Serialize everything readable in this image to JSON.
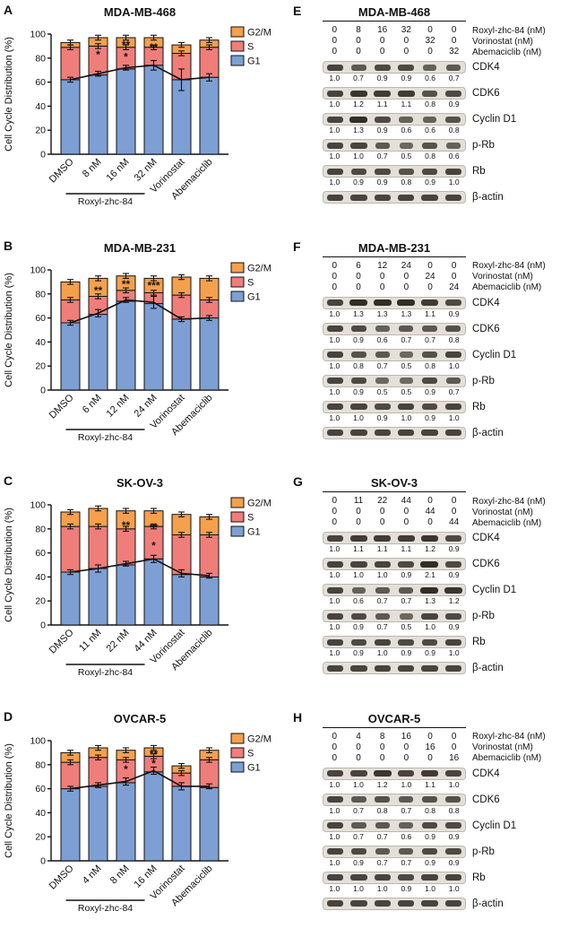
{
  "colors": {
    "g2m": "#F5A04C",
    "s": "#EF7E7A",
    "g1": "#7D9FD3",
    "outline": "#111111"
  },
  "legend": [
    "G2/M",
    "S",
    "G1"
  ],
  "chart_data": [
    {
      "panel": "A",
      "type": "bar",
      "stacked": true,
      "title": "MDA-MB-468",
      "ylabel": "Cell Cycle Distribution (%)",
      "ylim": [
        0,
        100
      ],
      "yticks": [
        0,
        20,
        40,
        60,
        80,
        100
      ],
      "categories": [
        "DMSO",
        "8 nM",
        "16 nM",
        "32 nM",
        "Vorinostat",
        "Abemaciclib"
      ],
      "dose_group": {
        "label": "Roxyl-zhc-84",
        "from": 1,
        "to": 3
      },
      "series": [
        {
          "name": "G1",
          "values": [
            62,
            66,
            71,
            74,
            62,
            64
          ]
        },
        {
          "name": "S",
          "values": [
            27,
            24,
            18,
            15,
            22,
            25
          ]
        },
        {
          "name": "G2/M",
          "values": [
            4,
            7,
            8,
            8,
            7,
            6
          ]
        }
      ],
      "line_overlay": {
        "label": "G1 trend",
        "values": [
          62,
          67,
          72,
          74,
          62,
          64
        ],
        "err": [
          2,
          2,
          2,
          4,
          9,
          3
        ]
      },
      "significance": [
        {
          "index": 1,
          "text": "*",
          "y": 80
        },
        {
          "index": 2,
          "text": "**",
          "y": 88
        },
        {
          "index": 2,
          "text": "*",
          "y": 78
        },
        {
          "index": 3,
          "text": "**",
          "y": 86
        }
      ]
    },
    {
      "panel": "B",
      "type": "bar",
      "stacked": true,
      "title": "MDA-MB-231",
      "ylabel": "Cell Cycle Distribution (%)",
      "ylim": [
        0,
        100
      ],
      "yticks": [
        0,
        20,
        40,
        60,
        80,
        100
      ],
      "categories": [
        "DMSO",
        "6 nM",
        "12 nM",
        "24 nM",
        "Vorinostat",
        "Abemaciclib"
      ],
      "dose_group": {
        "label": "Roxyl-zhc-84",
        "from": 1,
        "to": 3
      },
      "series": [
        {
          "name": "G1",
          "values": [
            56,
            63,
            74,
            72,
            59,
            60
          ]
        },
        {
          "name": "S",
          "values": [
            19,
            15,
            9,
            9,
            20,
            15
          ]
        },
        {
          "name": "G2/M",
          "values": [
            15,
            15,
            12,
            12,
            15,
            18
          ]
        }
      ],
      "line_overlay": {
        "label": "G1 trend",
        "values": [
          56,
          64,
          75,
          73,
          59,
          60
        ],
        "err": [
          2,
          3,
          2,
          5,
          2,
          2
        ]
      },
      "significance": [
        {
          "index": 1,
          "text": "**",
          "y": 80
        },
        {
          "index": 2,
          "text": "**",
          "y": 85
        },
        {
          "index": 3,
          "text": "***",
          "y": 84
        }
      ]
    },
    {
      "panel": "C",
      "type": "bar",
      "stacked": true,
      "title": "SK-OV-3",
      "ylabel": "Cell Cycle Distribution (%)",
      "ylim": [
        0,
        100
      ],
      "yticks": [
        0,
        20,
        40,
        60,
        80,
        100
      ],
      "categories": [
        "DMSO",
        "11 nM",
        "22 nM",
        "44 nM",
        "Vorinostat",
        "Abemaciclib"
      ],
      "dose_group": {
        "label": "Roxyl-zhc-84",
        "from": 1,
        "to": 3
      },
      "series": [
        {
          "name": "G1",
          "values": [
            44,
            47,
            50,
            55,
            42,
            40
          ]
        },
        {
          "name": "S",
          "values": [
            38,
            35,
            30,
            27,
            33,
            35
          ]
        },
        {
          "name": "G2/M",
          "values": [
            12,
            15,
            15,
            13,
            17,
            15
          ]
        }
      ],
      "line_overlay": {
        "label": "G1 trend",
        "values": [
          44,
          47,
          51,
          55,
          43,
          41
        ],
        "err": [
          2,
          3,
          2,
          3,
          3,
          2
        ]
      },
      "significance": [
        {
          "index": 2,
          "text": "**",
          "y": 80
        },
        {
          "index": 3,
          "text": "**",
          "y": 78
        },
        {
          "index": 3,
          "text": "*",
          "y": 63
        }
      ]
    },
    {
      "panel": "D",
      "type": "bar",
      "stacked": true,
      "title": "OVCAR-5",
      "ylabel": "Cell Cycle Distribution (%)",
      "ylim": [
        0,
        100
      ],
      "yticks": [
        0,
        20,
        40,
        60,
        80,
        100
      ],
      "categories": [
        "DMSO",
        "4 nM",
        "8 nM",
        "16 nM",
        "Vorinostat",
        "Abemaciclib"
      ],
      "dose_group": {
        "label": "Roxyl-zhc-84",
        "from": 1,
        "to": 3
      },
      "series": [
        {
          "name": "G1",
          "values": [
            60,
            62,
            65,
            74,
            62,
            61
          ]
        },
        {
          "name": "S",
          "values": [
            22,
            24,
            19,
            13,
            11,
            23
          ]
        },
        {
          "name": "G2/M",
          "values": [
            8,
            8,
            8,
            7,
            6,
            8
          ]
        }
      ],
      "line_overlay": {
        "label": "G1 trend",
        "values": [
          60,
          63,
          66,
          75,
          62,
          62
        ],
        "err": [
          2,
          2,
          3,
          3,
          3,
          2
        ]
      },
      "significance": [
        {
          "index": 2,
          "text": "*",
          "y": 73
        },
        {
          "index": 3,
          "text": "**",
          "y": 86
        },
        {
          "index": 3,
          "text": "*",
          "y": 78
        }
      ]
    }
  ],
  "blot_panels": [
    {
      "panel": "E",
      "title": "MDA-MB-468",
      "dose_rows": [
        {
          "values": [
            "0",
            "8",
            "16",
            "32",
            "0",
            "0"
          ],
          "label": "Roxyl-zhc-84 (nM)"
        },
        {
          "values": [
            "0",
            "0",
            "0",
            "0",
            "32",
            "0"
          ],
          "label": "Vorinostat (nM)"
        },
        {
          "values": [
            "0",
            "0",
            "0",
            "0",
            "0",
            "32"
          ],
          "label": "Abemaciclib (nM)"
        }
      ],
      "blots": [
        {
          "label": "CDK4",
          "values": [
            "1.0",
            "0.7",
            "0.9",
            "0.9",
            "0.6",
            "0.7"
          ]
        },
        {
          "label": "CDK6",
          "values": [
            "1.0",
            "1.2",
            "1.1",
            "1.1",
            "0.8",
            "0.9"
          ]
        },
        {
          "label": "Cyclin D1",
          "values": [
            "1.0",
            "1.3",
            "0.9",
            "0.6",
            "0.6",
            "0.8"
          ]
        },
        {
          "label": "p-Rb",
          "values": [
            "1.0",
            "1.0",
            "0.7",
            "0.5",
            "0.8",
            "0.6"
          ]
        },
        {
          "label": "Rb",
          "values": [
            "1.0",
            "0.9",
            "0.9",
            "0.8",
            "0.9",
            "1.0"
          ]
        },
        {
          "label": "β-actin",
          "values": null
        }
      ]
    },
    {
      "panel": "F",
      "title": "MDA-MB-231",
      "dose_rows": [
        {
          "values": [
            "0",
            "6",
            "12",
            "24",
            "0",
            "0"
          ],
          "label": "Roxyl-zhc-84 (nM)"
        },
        {
          "values": [
            "0",
            "0",
            "0",
            "0",
            "24",
            "0"
          ],
          "label": "Vorinostat (nM)"
        },
        {
          "values": [
            "0",
            "0",
            "0",
            "0",
            "0",
            "24"
          ],
          "label": "Abemaciclib (nM)"
        }
      ],
      "blots": [
        {
          "label": "CDK4",
          "values": [
            "1.0",
            "1.3",
            "1.3",
            "1.3",
            "1.1",
            "0.9"
          ]
        },
        {
          "label": "CDK6",
          "values": [
            "1.0",
            "0.9",
            "0.6",
            "0.7",
            "0.7",
            "0.8"
          ]
        },
        {
          "label": "Cyclin D1",
          "values": [
            "1.0",
            "0.8",
            "0.7",
            "0.5",
            "0.8",
            "1.0"
          ]
        },
        {
          "label": "p-Rb",
          "values": [
            "1.0",
            "0.9",
            "0.5",
            "0.5",
            "0.9",
            "0.7"
          ]
        },
        {
          "label": "Rb",
          "values": [
            "1.0",
            "1.0",
            "0.9",
            "1.0",
            "0.9",
            "1.0"
          ]
        },
        {
          "label": "β-actin",
          "values": null
        }
      ]
    },
    {
      "panel": "G",
      "title": "SK-OV-3",
      "dose_rows": [
        {
          "values": [
            "0",
            "11",
            "22",
            "44",
            "0",
            "0"
          ],
          "label": "Roxyl-zhc-84 (nM)"
        },
        {
          "values": [
            "0",
            "0",
            "0",
            "0",
            "44",
            "0"
          ],
          "label": "Vorinostat (nM)"
        },
        {
          "values": [
            "0",
            "0",
            "0",
            "0",
            "0",
            "44"
          ],
          "label": "Abemaciclib (nM)"
        }
      ],
      "blots": [
        {
          "label": "CDK4",
          "values": [
            "1.0",
            "1.1",
            "1.1",
            "1.1",
            "1.2",
            "0.9"
          ]
        },
        {
          "label": "CDK6",
          "values": [
            "1.0",
            "1.0",
            "1.0",
            "0.9",
            "2.1",
            "0.9"
          ]
        },
        {
          "label": "Cyclin D1",
          "values": [
            "1.0",
            "0.6",
            "0.7",
            "0.7",
            "1.3",
            "1.2"
          ]
        },
        {
          "label": "p-Rb",
          "values": [
            "1.0",
            "0.9",
            "0.7",
            "0.5",
            "1.0",
            "0.9"
          ]
        },
        {
          "label": "Rb",
          "values": [
            "1.0",
            "0.9",
            "1.0",
            "0.9",
            "0.9",
            "1.0"
          ]
        },
        {
          "label": "β-actin",
          "values": null
        }
      ]
    },
    {
      "panel": "H",
      "title": "OVCAR-5",
      "dose_rows": [
        {
          "values": [
            "0",
            "4",
            "8",
            "16",
            "0",
            "0"
          ],
          "label": "Roxyl-zhc-84 (nM)"
        },
        {
          "values": [
            "0",
            "0",
            "0",
            "0",
            "16",
            "0"
          ],
          "label": "Vorinostat (nM)"
        },
        {
          "values": [
            "0",
            "0",
            "0",
            "0",
            "0",
            "16"
          ],
          "label": "Abemaciclib (nM)"
        }
      ],
      "blots": [
        {
          "label": "CDK4",
          "values": [
            "1.0",
            "1.0",
            "1.2",
            "1.0",
            "1.1",
            "1.0"
          ]
        },
        {
          "label": "CDK6",
          "values": [
            "1.0",
            "0.7",
            "0.8",
            "0.7",
            "0.8",
            "0.8"
          ]
        },
        {
          "label": "Cyclin D1",
          "values": [
            "1.0",
            "0.7",
            "0.7",
            "0.6",
            "0.9",
            "0.9"
          ]
        },
        {
          "label": "p-Rb",
          "values": [
            "1.0",
            "0.9",
            "0.7",
            "0.7",
            "0.9",
            "0.9"
          ]
        },
        {
          "label": "Rb",
          "values": [
            "1.0",
            "1.0",
            "1.0",
            "0.9",
            "1.0",
            "1.0"
          ]
        },
        {
          "label": "β-actin",
          "values": null
        }
      ]
    }
  ]
}
